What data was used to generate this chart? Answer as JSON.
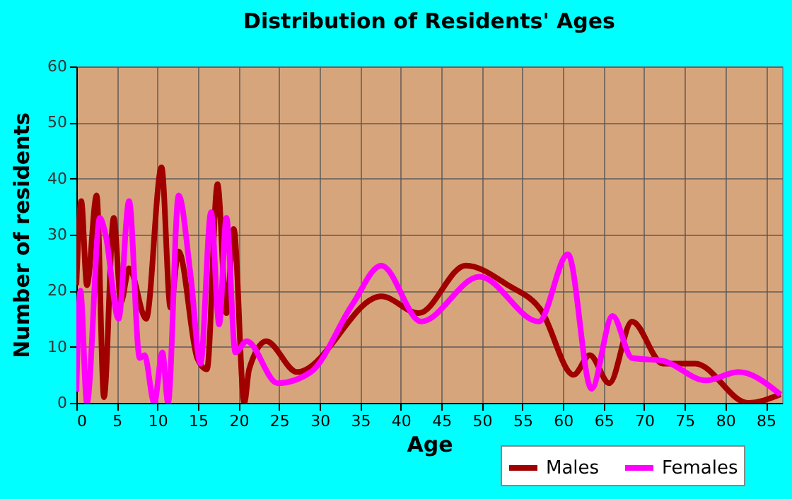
{
  "chart_data": {
    "type": "line",
    "title": "Distribution of Residents' Ages",
    "xlabel": "Age",
    "ylabel": "Number of residents",
    "xlim": [
      0,
      87
    ],
    "xticks": [
      0,
      5,
      10,
      15,
      20,
      25,
      30,
      35,
      40,
      45,
      50,
      55,
      60,
      65,
      70,
      75,
      80,
      85
    ],
    "ylim": [
      0,
      60
    ],
    "yticks": [
      0,
      10,
      20,
      30,
      40,
      50,
      60
    ],
    "grid": true,
    "legend": "bottom",
    "marker": "none",
    "line_style": "solid",
    "series": [
      {
        "name": "Males",
        "color": "#a00000",
        "x": [
          0,
          0.6,
          1.3,
          2.5,
          3.4,
          4.6,
          5.5,
          6.5,
          8.6,
          10.5,
          11.6,
          12.6,
          14.9,
          16.1,
          17.4,
          18.5,
          19.4,
          20.7,
          21.3,
          23.4,
          27.2,
          37.6,
          42.2,
          48,
          53.2,
          57.3,
          61.3,
          63.3,
          65.7,
          68.5,
          72.3,
          76.3,
          82.8,
          86.8
        ],
        "values": [
          21,
          36,
          21,
          37,
          1,
          33,
          18,
          24,
          15,
          42,
          17,
          27,
          8,
          6,
          39,
          16,
          31,
          0,
          6,
          11,
          5.5,
          19,
          16,
          24.5,
          21,
          16.5,
          5,
          8.5,
          3.5,
          14.5,
          7,
          7,
          0,
          1.5
        ]
      },
      {
        "name": "Females",
        "color": "#ff00ff",
        "x": [
          0,
          0.5,
          1.3,
          2.9,
          3.6,
          5.2,
          6.5,
          7.8,
          8.4,
          9.6,
          10.6,
          11.3,
          12.6,
          14.1,
          15.3,
          16.6,
          17.6,
          18.5,
          19.6,
          21,
          24.8,
          28.9,
          34,
          37.6,
          42.5,
          49.7,
          57,
          60.6,
          63.5,
          66.1,
          68.5,
          72.3,
          77.6,
          81.6,
          86.8
        ],
        "values": [
          2,
          20,
          0,
          33,
          30,
          15,
          36,
          8,
          8.5,
          0,
          9,
          0,
          37,
          22.5,
          7,
          34,
          14,
          33,
          9,
          11,
          3.5,
          5.5,
          17.5,
          24.5,
          14.5,
          22.5,
          14.5,
          26.5,
          2.5,
          15.5,
          8,
          7.5,
          4,
          5.5,
          1.5
        ]
      }
    ]
  }
}
